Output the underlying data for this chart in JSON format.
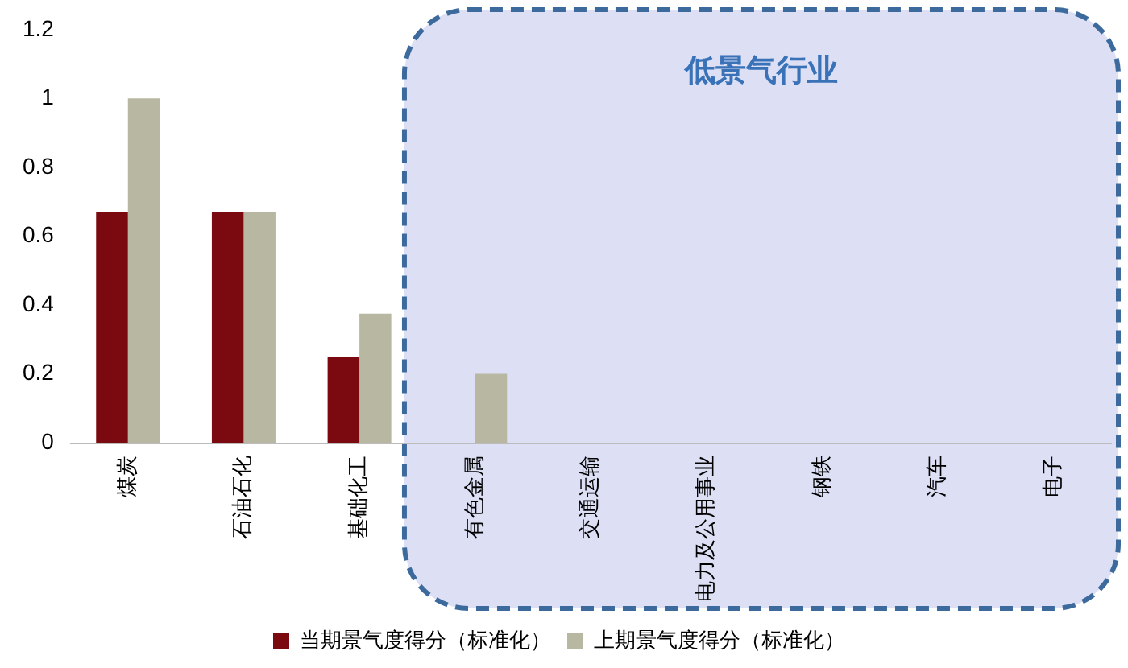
{
  "chart_data": {
    "type": "bar",
    "categories": [
      "煤炭",
      "石油石化",
      "基础化工",
      "有色金属",
      "交通运输",
      "电力及公用事业",
      "钢铁",
      "汽车",
      "电子"
    ],
    "series": [
      {
        "name": "当期景气度得分（标准化）",
        "color": "#7a0a0f",
        "values": [
          0.67,
          0.67,
          0.25,
          0,
          0,
          0,
          0,
          0,
          0
        ]
      },
      {
        "name": "上期景气度得分（标准化）",
        "color": "#b8b8a2",
        "values": [
          1,
          0.67,
          0.375,
          0.2,
          0,
          0,
          0,
          0,
          0
        ]
      }
    ],
    "ylim": [
      0,
      1.2
    ],
    "yticks": [
      0,
      0.2,
      0.4,
      0.6,
      0.8,
      1,
      1.2
    ],
    "grid": false,
    "legend": "bottom",
    "bands": [
      {
        "axis": "x",
        "from": "有色金属",
        "to": "电子",
        "label": "低景气行业",
        "color": "#dde0f5"
      }
    ]
  }
}
